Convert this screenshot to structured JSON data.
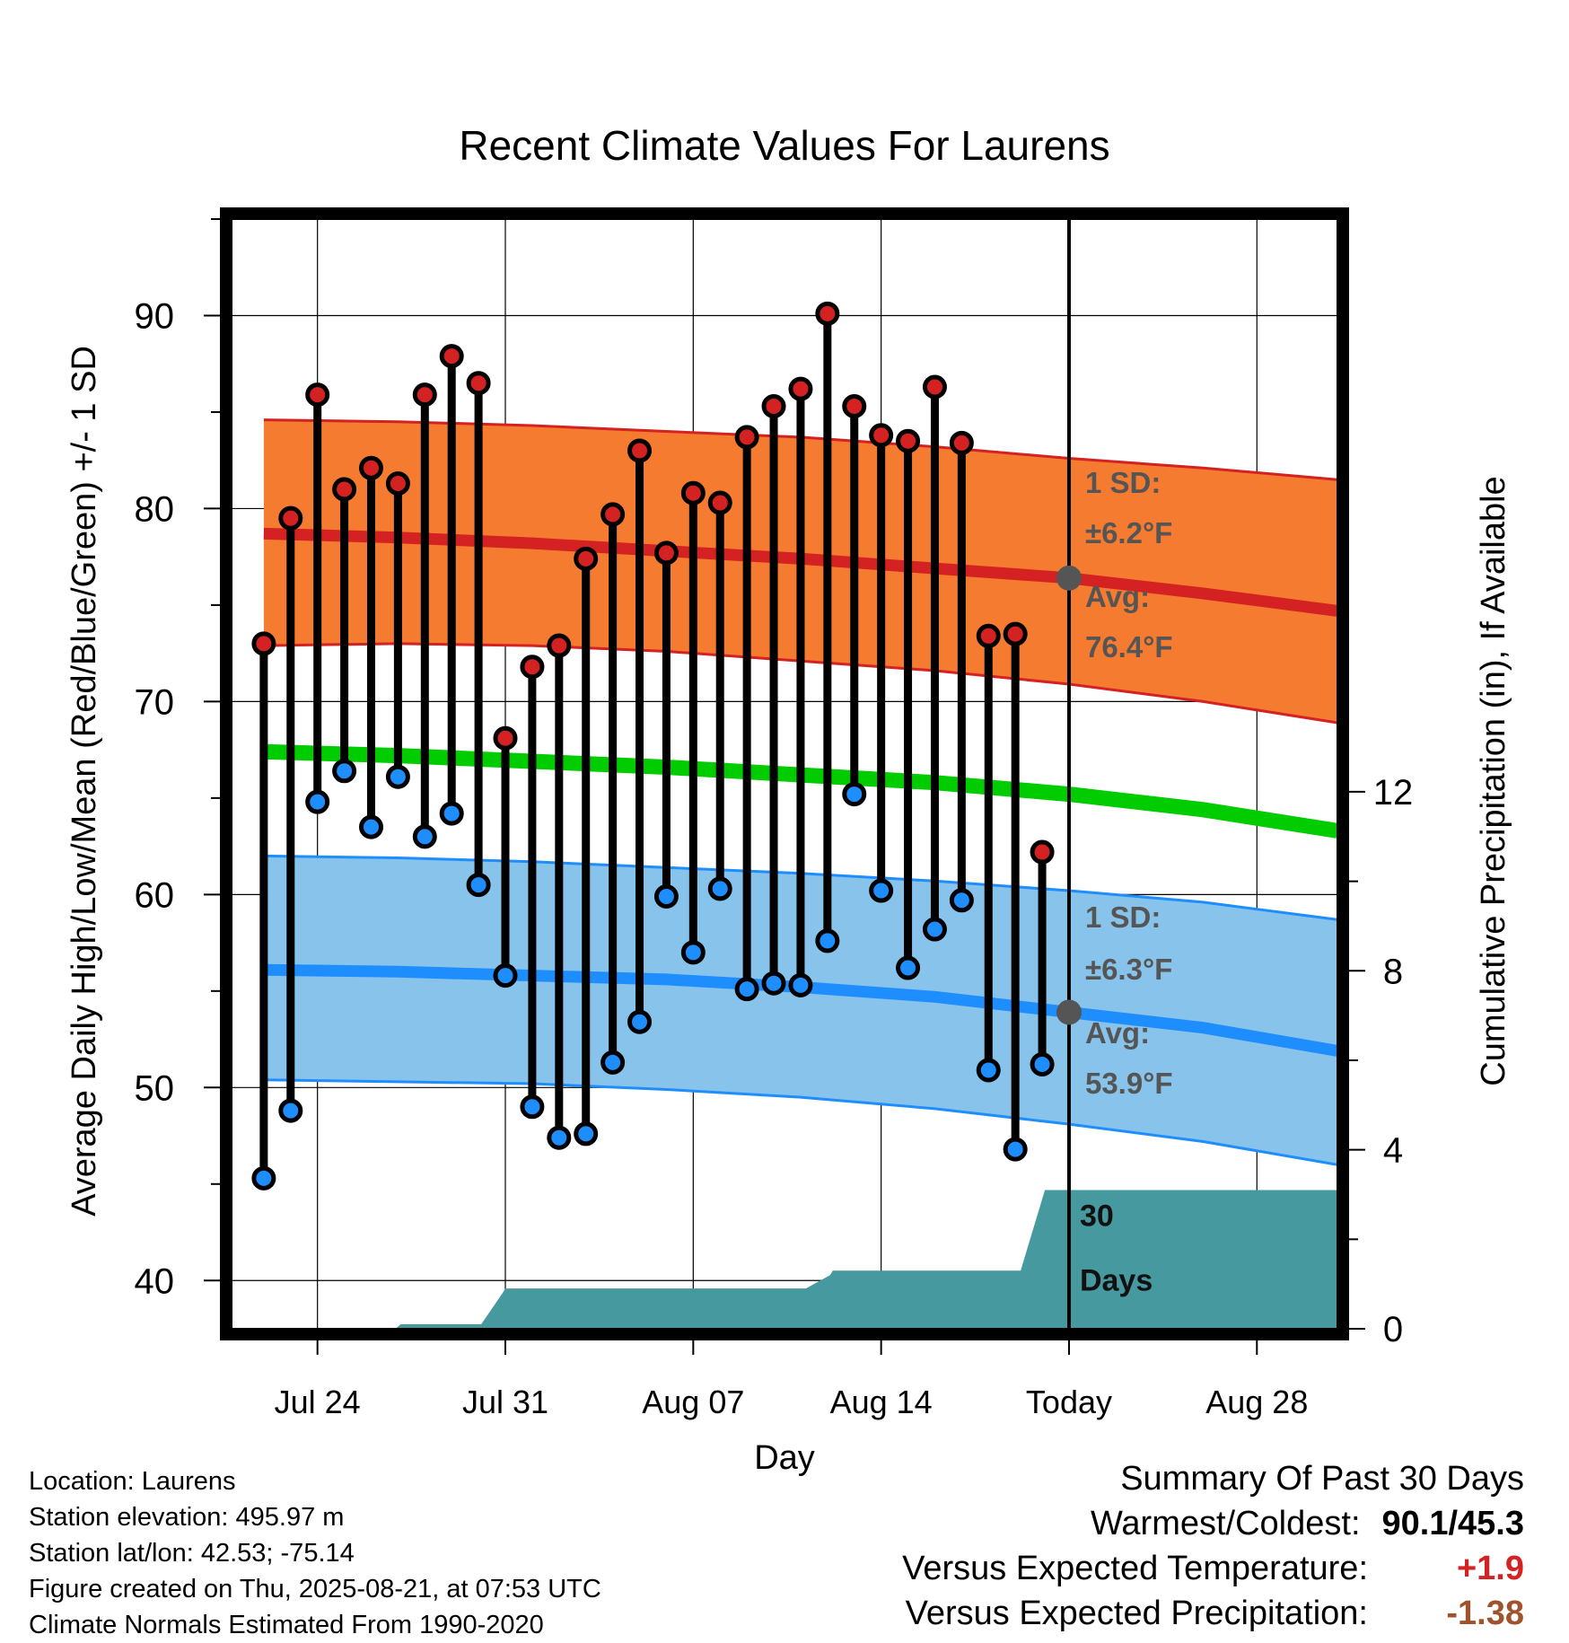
{
  "chart_data": {
    "type": "line",
    "title": "Recent Climate Values For Laurens",
    "xlabel": "Day",
    "ylabel": "Average Daily High/Low/Mean (Red/Blue/Green) +/- 1 SD",
    "ylabel_right": "Cumulative Precipitation (in), If Available",
    "ylim": [
      37.5,
      95
    ],
    "ylim_right": [
      0,
      24.8
    ],
    "xlim": [
      -3.2,
      38
    ],
    "yticks": [
      40,
      50,
      60,
      70,
      80,
      90
    ],
    "yticks_right": [
      0,
      4,
      8,
      12
    ],
    "xtick_labels": [
      {
        "day": 0,
        "label": "Jul 24"
      },
      {
        "day": 7,
        "label": "Jul 31"
      },
      {
        "day": 14,
        "label": "Aug 07"
      },
      {
        "day": 21,
        "label": "Aug 14"
      },
      {
        "day": 28,
        "label": "Today"
      },
      {
        "day": 35,
        "label": "Aug 28"
      }
    ],
    "grid": true,
    "today_day": 28,
    "days": [
      -2,
      -1,
      0,
      1,
      2,
      3,
      4,
      5,
      6,
      7,
      8,
      9,
      10,
      11,
      12,
      13,
      14,
      15,
      16,
      17,
      18,
      19,
      20,
      21,
      22,
      23,
      24,
      25,
      26,
      27
    ],
    "highs": [
      73.0,
      79.5,
      85.9,
      81.0,
      82.1,
      81.3,
      85.9,
      87.9,
      86.5,
      68.1,
      71.8,
      72.9,
      77.4,
      79.7,
      83.0,
      77.7,
      80.8,
      80.3,
      83.7,
      85.3,
      86.2,
      90.1,
      85.3,
      83.8,
      83.5,
      86.3,
      83.4,
      73.4,
      73.5,
      62.2
    ],
    "lows": [
      45.3,
      48.8,
      64.8,
      66.4,
      63.5,
      66.1,
      63.0,
      64.2,
      60.5,
      55.8,
      49.0,
      47.4,
      47.6,
      51.3,
      53.4,
      59.9,
      57.0,
      60.3,
      55.1,
      55.4,
      55.3,
      57.6,
      65.2,
      60.2,
      56.2,
      58.2,
      59.7,
      50.9,
      46.8,
      51.2
    ],
    "normals": {
      "days": [
        -2,
        3,
        8,
        13,
        18,
        23,
        28,
        33,
        38
      ],
      "avg_high": [
        78.7,
        78.5,
        78.2,
        77.8,
        77.4,
        76.9,
        76.4,
        75.6,
        74.7
      ],
      "high_upper": [
        84.6,
        84.5,
        84.3,
        84.0,
        83.7,
        83.2,
        82.6,
        82.1,
        81.5
      ],
      "high_lower": [
        72.9,
        73.0,
        72.9,
        72.6,
        72.1,
        71.6,
        70.9,
        70.0,
        68.9
      ],
      "avg_mean": [
        67.4,
        67.2,
        66.9,
        66.6,
        66.2,
        65.8,
        65.2,
        64.4,
        63.3
      ],
      "avg_low": [
        56.1,
        56.0,
        55.8,
        55.6,
        55.2,
        54.7,
        53.9,
        53.1,
        51.9
      ],
      "low_upper": [
        62.0,
        61.9,
        61.7,
        61.4,
        61.1,
        60.7,
        60.2,
        59.6,
        58.7
      ],
      "low_lower": [
        50.4,
        50.3,
        50.2,
        49.9,
        49.5,
        48.9,
        48.1,
        47.2,
        46.0
      ]
    },
    "precip": {
      "days": [
        -2,
        2.9,
        3.1,
        6.1,
        6.9,
        7,
        18.2,
        19.1,
        19.2,
        26.2,
        27.1,
        38
      ],
      "values": [
        0,
        0,
        0.1,
        0.1,
        0.8,
        0.9,
        0.9,
        1.2,
        1.3,
        1.3,
        3.1,
        3.1
      ]
    },
    "colors": {
      "high": "#d42121",
      "high_band": "#f47b2f",
      "mean": "#00cc00",
      "low": "#1e8eff",
      "low_band": "#87c3ea",
      "precip": "#4799a0",
      "high_marker": "#d42121",
      "low_marker": "#1e8eff",
      "today_marker": "#555555"
    },
    "annotations": {
      "high_sd": "1 SD:",
      "high_sd_val": "±6.2°F",
      "high_avg": "Avg:",
      "high_avg_val": "76.4°F",
      "low_sd": "1 SD:",
      "low_sd_val": "±6.3°F",
      "low_avg": "Avg:",
      "low_avg_val": "53.9°F",
      "days_line1": "30",
      "days_line2": "Days"
    }
  },
  "footer": {
    "location": "Location: Laurens",
    "elevation": "Station elevation: 495.97 m",
    "latlon": "Station lat/lon: 42.53; -75.14",
    "created": "Figure created on Thu, 2025-08-21, at 07:53 UTC",
    "normals": "Climate Normals Estimated From 1990-2020"
  },
  "summary": {
    "title": "Summary Of Past 30 Days",
    "warmest_label": "Warmest/Coldest:",
    "warmest_value": "90.1/45.3",
    "temp_label": "Versus Expected Temperature:",
    "temp_value": "+1.9",
    "temp_color": "#d42121",
    "precip_label": "Versus Expected Precipitation:",
    "precip_value": "-1.38",
    "precip_color": "#a0522d"
  }
}
